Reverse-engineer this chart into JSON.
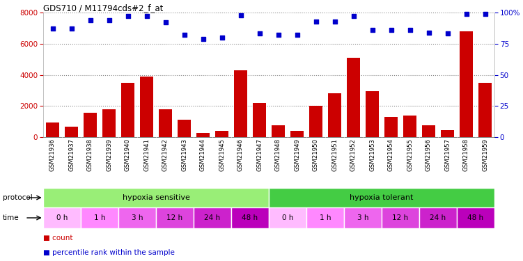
{
  "title": "GDS710 / M11794cds#2_f_at",
  "samples": [
    "GSM21936",
    "GSM21937",
    "GSM21938",
    "GSM21939",
    "GSM21940",
    "GSM21941",
    "GSM21942",
    "GSM21943",
    "GSM21944",
    "GSM21945",
    "GSM21946",
    "GSM21947",
    "GSM21948",
    "GSM21949",
    "GSM21950",
    "GSM21951",
    "GSM21952",
    "GSM21953",
    "GSM21954",
    "GSM21955",
    "GSM21956",
    "GSM21957",
    "GSM21958",
    "GSM21959"
  ],
  "counts": [
    950,
    650,
    1550,
    1800,
    3500,
    3900,
    1800,
    1100,
    280,
    420,
    4300,
    2200,
    750,
    420,
    2000,
    2800,
    5100,
    2950,
    1300,
    1400,
    750,
    450,
    6800,
    3500
  ],
  "percentile_ranks": [
    87,
    87,
    94,
    94,
    97,
    97,
    92,
    82,
    79,
    80,
    98,
    83,
    82,
    82,
    93,
    93,
    97,
    86,
    86,
    86,
    84,
    83,
    99,
    99
  ],
  "bar_color": "#cc0000",
  "dot_color": "#0000cc",
  "ylim_left": [
    0,
    8000
  ],
  "ylim_right": [
    0,
    100
  ],
  "yticks_left": [
    0,
    2000,
    4000,
    6000,
    8000
  ],
  "yticks_right": [
    0,
    25,
    50,
    75,
    100
  ],
  "protocol_groups": [
    {
      "label": "hypoxia sensitive",
      "start": 0,
      "end": 12,
      "color": "#99ee77"
    },
    {
      "label": "hypoxia tolerant",
      "start": 12,
      "end": 24,
      "color": "#44cc44"
    }
  ],
  "time_groups": [
    {
      "label": "0 h",
      "start": 0,
      "end": 2,
      "color": "#ffbbff"
    },
    {
      "label": "1 h",
      "start": 2,
      "end": 4,
      "color": "#ff88ff"
    },
    {
      "label": "3 h",
      "start": 4,
      "end": 6,
      "color": "#ee66ee"
    },
    {
      "label": "12 h",
      "start": 6,
      "end": 8,
      "color": "#dd44dd"
    },
    {
      "label": "24 h",
      "start": 8,
      "end": 10,
      "color": "#cc22cc"
    },
    {
      "label": "48 h",
      "start": 10,
      "end": 12,
      "color": "#bb00bb"
    },
    {
      "label": "0 h",
      "start": 12,
      "end": 14,
      "color": "#ffbbff"
    },
    {
      "label": "1 h",
      "start": 14,
      "end": 16,
      "color": "#ff88ff"
    },
    {
      "label": "3 h",
      "start": 16,
      "end": 18,
      "color": "#ee66ee"
    },
    {
      "label": "12 h",
      "start": 18,
      "end": 20,
      "color": "#dd44dd"
    },
    {
      "label": "24 h",
      "start": 20,
      "end": 22,
      "color": "#cc22cc"
    },
    {
      "label": "48 h",
      "start": 22,
      "end": 24,
      "color": "#bb00bb"
    }
  ],
  "bg_color": "#ffffff",
  "grid_color": "#888888",
  "tick_label_bg": "#cccccc",
  "tick_sep_color": "#ffffff",
  "legend_items": [
    {
      "label": "count",
      "color": "#cc0000"
    },
    {
      "label": "percentile rank within the sample",
      "color": "#0000cc"
    }
  ]
}
